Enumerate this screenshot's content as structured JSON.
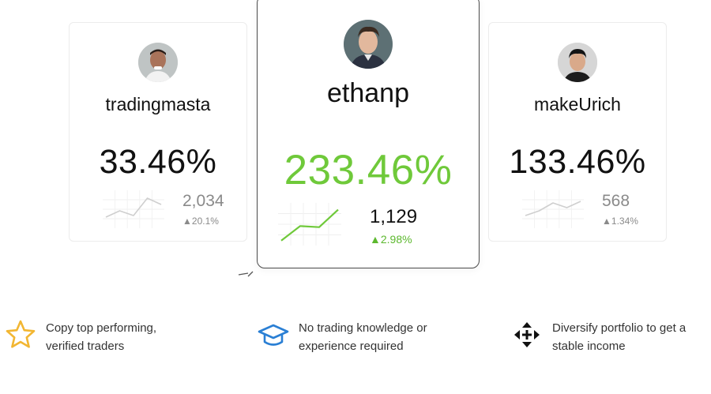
{
  "traders": [
    {
      "username": "tradingmasta",
      "return_pct": "33.46%",
      "followers": "2,034",
      "change": "20.1%",
      "spark": [
        0.25,
        0.45,
        0.3,
        0.85,
        0.65
      ],
      "color": "#cfcfcf"
    },
    {
      "username": "ethanp",
      "return_pct": "233.46%",
      "followers": "1,129",
      "change": "2.98%",
      "spark": [
        0.05,
        0.45,
        0.42,
        0.9
      ],
      "color": "#6fc93a"
    },
    {
      "username": "makeUrich",
      "return_pct": "133.46%",
      "followers": "568",
      "change": "1.34%",
      "spark": [
        0.3,
        0.45,
        0.7,
        0.55,
        0.75
      ],
      "color": "#cfcfcf"
    }
  ],
  "features": [
    {
      "line1": "Copy top performing,",
      "line2": "verified traders",
      "icon": "star-icon"
    },
    {
      "line1": "No trading knowledge or",
      "line2": "experience required",
      "icon": "graduation-cap-icon"
    },
    {
      "line1": "Diversify portfolio to get a",
      "line2": "stable income",
      "icon": "move-arrows-icon"
    }
  ],
  "colors": {
    "accent_green": "#6fc93a",
    "star": "#f2b632",
    "cap": "#2a7fd4",
    "muted": "#8a8a8a"
  }
}
